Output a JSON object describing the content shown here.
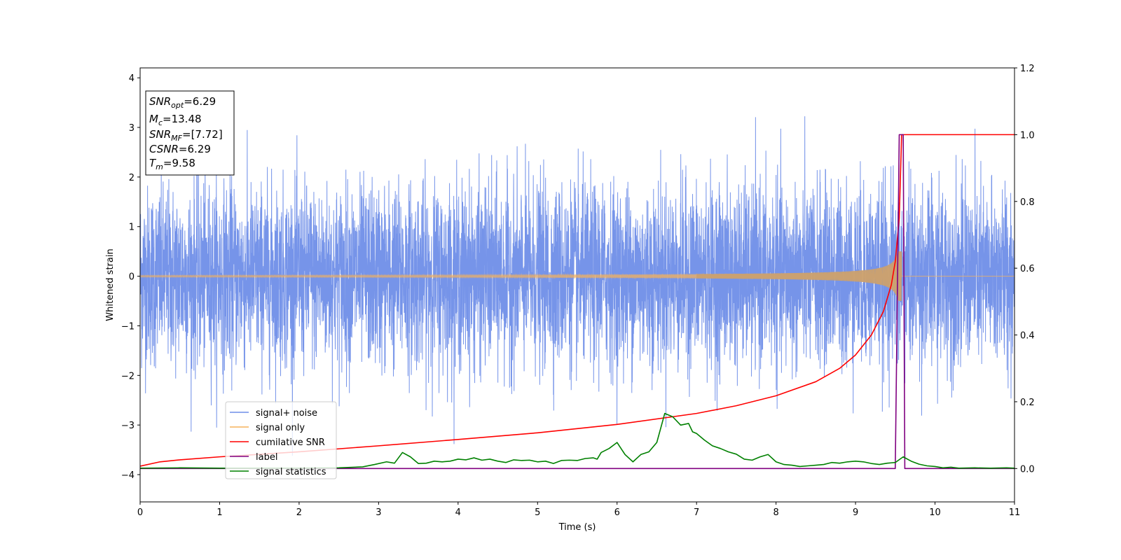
{
  "chart_data": {
    "type": "line",
    "xlabel": "Time (s)",
    "ylabel": "Whitened strain",
    "xlim": [
      0,
      11
    ],
    "ylim_left": [
      -4.55,
      4.2
    ],
    "ylim_right": [
      -0.1,
      1.2
    ],
    "x_ticks": [
      "0",
      "1",
      "2",
      "3",
      "4",
      "5",
      "6",
      "7",
      "8",
      "9",
      "10",
      "11"
    ],
    "y_ticks_left": [
      "4",
      "3",
      "2",
      "1",
      "0",
      "−1",
      "−2",
      "−3",
      "−4"
    ],
    "y_ticks_right": [
      "1.2",
      "1.0",
      "0.8",
      "0.6",
      "0.4",
      "0.2",
      "0.0"
    ],
    "info_box": [
      {
        "var": "SNR",
        "sub": "opt",
        "val": "=6.29"
      },
      {
        "var": "M",
        "sub": "c",
        "val": "=13.48"
      },
      {
        "var": "SNR",
        "sub": "MF",
        "val": "=[7.72]"
      },
      {
        "var": "CSNR",
        "sub": "",
        "val": "=6.29"
      },
      {
        "var": "T",
        "sub": "m",
        "val": "=9.58"
      }
    ],
    "legend_position": "lower-left",
    "series": [
      {
        "name": "signal+ noise",
        "color": "#6f8ee8",
        "axis": "left",
        "noise_std": 0.9,
        "noise_max_abs": 3.85,
        "x_range": [
          0,
          11
        ]
      },
      {
        "name": "signal only",
        "color": "#f5b25a",
        "axis": "left",
        "chirp_amplitude_start": 0.02,
        "chirp_amplitude_peak": 0.5,
        "merger_time": 9.58,
        "x_range": [
          0,
          11
        ]
      },
      {
        "name": "cumilative SNR",
        "color": "#ff0000",
        "axis": "right",
        "x": [
          0,
          0.25,
          0.5,
          1,
          2,
          3,
          4,
          5,
          6,
          7,
          7.5,
          8,
          8.5,
          8.8,
          9,
          9.2,
          9.35,
          9.45,
          9.5,
          9.55,
          9.58,
          9.6,
          11
        ],
        "y": [
          0.007,
          0.02,
          0.026,
          0.035,
          0.05,
          0.068,
          0.087,
          0.107,
          0.132,
          0.165,
          0.188,
          0.218,
          0.26,
          0.3,
          0.34,
          0.4,
          0.47,
          0.55,
          0.62,
          0.75,
          1.0,
          1.0,
          1.0
        ]
      },
      {
        "name": "label",
        "color": "#800080",
        "axis": "right",
        "x": [
          0,
          9.5,
          9.55,
          9.6,
          9.62,
          11
        ],
        "y": [
          0,
          0,
          1,
          1,
          0,
          0
        ]
      },
      {
        "name": "signal statistics",
        "color": "#008000",
        "axis": "right",
        "x": [
          0,
          0.5,
          1,
          1.5,
          2,
          2.5,
          2.8,
          2.95,
          3.1,
          3.2,
          3.3,
          3.4,
          3.5,
          3.6,
          3.7,
          3.8,
          3.9,
          4.0,
          4.1,
          4.2,
          4.3,
          4.4,
          4.5,
          4.6,
          4.7,
          4.8,
          4.9,
          5.0,
          5.1,
          5.2,
          5.3,
          5.4,
          5.5,
          5.6,
          5.7,
          5.75,
          5.8,
          5.9,
          6.0,
          6.1,
          6.2,
          6.3,
          6.4,
          6.5,
          6.6,
          6.7,
          6.8,
          6.9,
          6.95,
          7.0,
          7.1,
          7.2,
          7.3,
          7.4,
          7.5,
          7.6,
          7.7,
          7.8,
          7.9,
          8.0,
          8.1,
          8.2,
          8.3,
          8.4,
          8.5,
          8.6,
          8.7,
          8.8,
          8.9,
          9.0,
          9.1,
          9.2,
          9.3,
          9.4,
          9.5,
          9.6,
          9.7,
          9.8,
          9.9,
          10.0,
          10.1,
          10.2,
          10.3,
          10.5,
          10.7,
          10.9,
          11
        ],
        "y": [
          0.001,
          0.002,
          0.001,
          0.001,
          0.001,
          0.002,
          0.005,
          0.012,
          0.02,
          0.016,
          0.048,
          0.035,
          0.015,
          0.016,
          0.022,
          0.02,
          0.022,
          0.028,
          0.026,
          0.032,
          0.025,
          0.028,
          0.022,
          0.018,
          0.026,
          0.024,
          0.025,
          0.02,
          0.022,
          0.015,
          0.024,
          0.025,
          0.024,
          0.03,
          0.032,
          0.028,
          0.048,
          0.06,
          0.078,
          0.042,
          0.02,
          0.042,
          0.05,
          0.078,
          0.165,
          0.155,
          0.13,
          0.135,
          0.11,
          0.105,
          0.085,
          0.068,
          0.06,
          0.05,
          0.043,
          0.028,
          0.025,
          0.035,
          0.042,
          0.02,
          0.012,
          0.01,
          0.006,
          0.008,
          0.01,
          0.012,
          0.018,
          0.016,
          0.02,
          0.022,
          0.02,
          0.015,
          0.012,
          0.016,
          0.018,
          0.035,
          0.022,
          0.013,
          0.008,
          0.006,
          0.002,
          0.004,
          0.001,
          0.002,
          0.001,
          0.002,
          0.001
        ]
      }
    ]
  }
}
